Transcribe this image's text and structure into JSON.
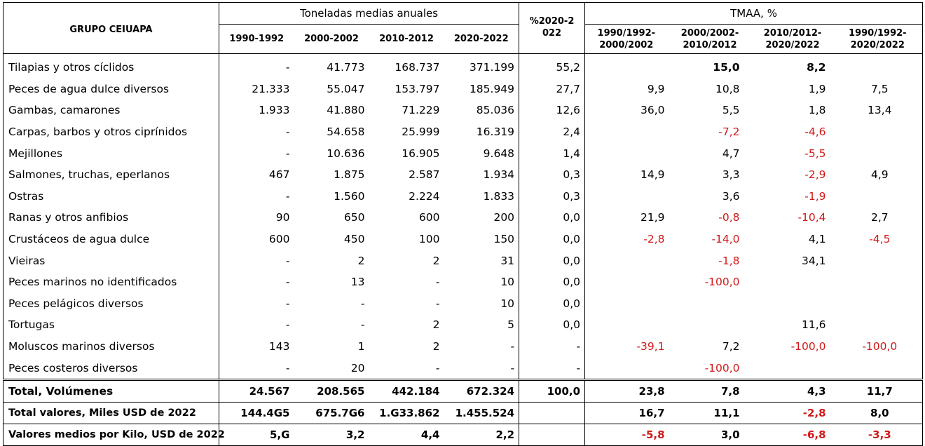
{
  "header": {
    "group": "GRUPO CEIUAPA",
    "tonnes": "Toneladas medias anuales",
    "share": "%2020-2022",
    "tmaa": "TMAA, %",
    "periods": [
      "1990-1992",
      "2000-2002",
      "2010-2012",
      "2020-2022"
    ],
    "tmaa_periods": [
      "1990/1992-2000/2002",
      "2000/2002-2010/2012",
      "2010/2012-2020/2022",
      "1990/1992-2020/2022"
    ]
  },
  "rows": [
    {
      "label": "Tilapias y otros cíclidos",
      "v": [
        "-",
        "41.773",
        "168.737",
        "371.199"
      ],
      "pct": "55,2",
      "tmaa": [
        "",
        "15,0",
        "8,2",
        ""
      ],
      "bold": [
        false,
        true,
        true,
        false
      ],
      "neg": [
        false,
        false,
        false,
        false
      ]
    },
    {
      "label": "Peces de agua dulce diversos",
      "v": [
        "21.333",
        "55.047",
        "153.797",
        "185.949"
      ],
      "pct": "27,7",
      "tmaa": [
        "9,9",
        "10,8",
        "1,9",
        "7,5"
      ],
      "bold": [
        false,
        false,
        false,
        false
      ],
      "neg": [
        false,
        false,
        false,
        false
      ]
    },
    {
      "label": "Gambas, camarones",
      "v": [
        "1.933",
        "41.880",
        "71.229",
        "85.036"
      ],
      "pct": "12,6",
      "tmaa": [
        "36,0",
        "5,5",
        "1,8",
        "13,4"
      ],
      "bold": [
        false,
        false,
        false,
        false
      ],
      "neg": [
        false,
        false,
        false,
        false
      ]
    },
    {
      "label": "Carpas, barbos y otros ciprínidos",
      "v": [
        "-",
        "54.658",
        "25.999",
        "16.319"
      ],
      "pct": "2,4",
      "tmaa": [
        "",
        "-7,2",
        "-4,6",
        ""
      ],
      "bold": [
        false,
        false,
        false,
        false
      ],
      "neg": [
        false,
        true,
        true,
        false
      ]
    },
    {
      "label": "Mejillones",
      "v": [
        "-",
        "10.636",
        "16.905",
        "9.648"
      ],
      "pct": "1,4",
      "tmaa": [
        "",
        "4,7",
        "-5,5",
        ""
      ],
      "bold": [
        false,
        false,
        false,
        false
      ],
      "neg": [
        false,
        false,
        true,
        false
      ]
    },
    {
      "label": "Salmones, truchas, eperlanos",
      "v": [
        "467",
        "1.875",
        "2.587",
        "1.934"
      ],
      "pct": "0,3",
      "tmaa": [
        "14,9",
        "3,3",
        "-2,9",
        "4,9"
      ],
      "bold": [
        false,
        false,
        false,
        false
      ],
      "neg": [
        false,
        false,
        true,
        false
      ]
    },
    {
      "label": "Ostras",
      "v": [
        "-",
        "1.560",
        "2.224",
        "1.833"
      ],
      "pct": "0,3",
      "tmaa": [
        "",
        "3,6",
        "-1,9",
        ""
      ],
      "bold": [
        false,
        false,
        false,
        false
      ],
      "neg": [
        false,
        false,
        true,
        false
      ]
    },
    {
      "label": "Ranas y otros anfibios",
      "v": [
        "90",
        "650",
        "600",
        "200"
      ],
      "pct": "0,0",
      "tmaa": [
        "21,9",
        "-0,8",
        "-10,4",
        "2,7"
      ],
      "bold": [
        false,
        false,
        false,
        false
      ],
      "neg": [
        false,
        true,
        true,
        false
      ]
    },
    {
      "label": "Crustáceos de agua dulce",
      "v": [
        "600",
        "450",
        "100",
        "150"
      ],
      "pct": "0,0",
      "tmaa": [
        "-2,8",
        "-14,0",
        "4,1",
        "-4,5"
      ],
      "bold": [
        false,
        false,
        false,
        false
      ],
      "neg": [
        true,
        true,
        false,
        true
      ]
    },
    {
      "label": "Vieiras",
      "v": [
        "-",
        "2",
        "2",
        "31"
      ],
      "pct": "0,0",
      "tmaa": [
        "",
        "-1,8",
        "34,1",
        ""
      ],
      "bold": [
        false,
        false,
        false,
        false
      ],
      "neg": [
        false,
        true,
        false,
        false
      ]
    },
    {
      "label": "Peces marinos no identificados",
      "v": [
        "-",
        "13",
        "-",
        "10"
      ],
      "pct": "0,0",
      "tmaa": [
        "",
        "-100,0",
        "",
        ""
      ],
      "bold": [
        false,
        false,
        false,
        false
      ],
      "neg": [
        false,
        true,
        false,
        false
      ]
    },
    {
      "label": "Peces pelágicos diversos",
      "v": [
        "-",
        "-",
        "-",
        "10"
      ],
      "pct": "0,0",
      "tmaa": [
        "",
        "",
        "",
        ""
      ],
      "bold": [
        false,
        false,
        false,
        false
      ],
      "neg": [
        false,
        false,
        false,
        false
      ]
    },
    {
      "label": "Tortugas",
      "v": [
        "-",
        "-",
        "2",
        "5"
      ],
      "pct": "0,0",
      "tmaa": [
        "",
        "",
        "11,6",
        ""
      ],
      "bold": [
        false,
        false,
        false,
        false
      ],
      "neg": [
        false,
        false,
        false,
        false
      ]
    },
    {
      "label": "Moluscos marinos diversos",
      "v": [
        "143",
        "1",
        "2",
        "-"
      ],
      "pct": "-",
      "tmaa": [
        "-39,1",
        "7,2",
        "-100,0",
        "-100,0"
      ],
      "bold": [
        false,
        false,
        false,
        false
      ],
      "neg": [
        true,
        false,
        true,
        true
      ]
    },
    {
      "label": "Peces costeros diversos",
      "v": [
        "-",
        "20",
        "-",
        "-"
      ],
      "pct": "-",
      "tmaa": [
        "",
        "-100,0",
        "",
        ""
      ],
      "bold": [
        false,
        false,
        false,
        false
      ],
      "neg": [
        false,
        true,
        false,
        false
      ]
    }
  ],
  "totals": [
    {
      "label": "Total, Volúmenes",
      "v": [
        "24.567",
        "208.565",
        "442.184",
        "672.324"
      ],
      "pct": "100,0",
      "tmaa": [
        "23,8",
        "7,8",
        "4,3",
        "11,7"
      ],
      "neg": [
        false,
        false,
        false,
        false
      ]
    },
    {
      "label": "Total valores, Miles USD de 2022",
      "v": [
        "144.4G5",
        "675.7G6",
        "1.G33.862",
        "1.455.524"
      ],
      "pct": "",
      "tmaa": [
        "16,7",
        "11,1",
        "-2,8",
        "8,0"
      ],
      "neg": [
        false,
        false,
        true,
        false
      ]
    },
    {
      "label": "Valores medios por Kilo, USD de 2022",
      "v": [
        "5,G",
        "3,2",
        "4,4",
        "2,2"
      ],
      "pct": "",
      "tmaa": [
        "-5,8",
        "3,0",
        "-6,8",
        "-3,3"
      ],
      "neg": [
        true,
        false,
        true,
        true
      ]
    }
  ]
}
